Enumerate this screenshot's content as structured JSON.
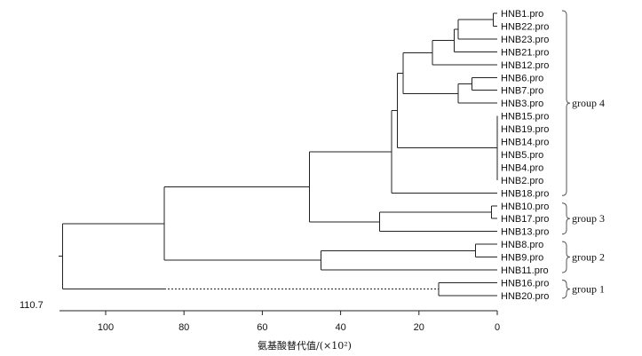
{
  "leaves": [
    "HNB1.pro",
    "HNB22.pro",
    "HNB23.pro",
    "HNB21.pro",
    "HNB12.pro",
    "HNB6.pro",
    "HNB7.pro",
    "HNB3.pro",
    "HNB15.pro",
    "HNB19.pro",
    "HNB14.pro",
    "HNB5.pro",
    "HNB4.pro",
    "HNB2.pro",
    "HNB18.pro",
    "HNB10.pro",
    "HNB17.pro",
    "HNB13.pro",
    "HNB8.pro",
    "HNB9.pro",
    "HNB11.pro",
    "HNB16.pro",
    "HNB20.pro"
  ],
  "groups": [
    {
      "label": "group 4",
      "first_leaf": 0,
      "last_leaf": 14
    },
    {
      "label": "group 3",
      "first_leaf": 15,
      "last_leaf": 17
    },
    {
      "label": "group 2",
      "first_leaf": 18,
      "last_leaf": 20
    },
    {
      "label": "group 1",
      "first_leaf": 21,
      "last_leaf": 22
    }
  ],
  "axis": {
    "ticks": [
      "100",
      "80",
      "60",
      "40",
      "20",
      "0"
    ],
    "root_value_label": "110.7",
    "title": "氨基酸替代值/(×10²)"
  },
  "tree": {
    "max": 110.7,
    "merges": [
      {
        "id": "a",
        "children": [
          "L0",
          "L1"
        ],
        "height": 1
      },
      {
        "id": "b",
        "children": [
          "a",
          "L2"
        ],
        "height": 10
      },
      {
        "id": "c",
        "children": [
          "b",
          "L3"
        ],
        "height": 11
      },
      {
        "id": "d",
        "children": [
          "c",
          "L4"
        ],
        "height": 16.5
      },
      {
        "id": "e",
        "children": [
          "L5",
          "L6"
        ],
        "height": 6.5
      },
      {
        "id": "f",
        "children": [
          "e",
          "L7"
        ],
        "height": 10
      },
      {
        "id": "g",
        "children": [
          "d",
          "f"
        ],
        "height": 24
      },
      {
        "id": "h",
        "children": [
          "L8",
          "L9",
          "L10",
          "L11",
          "L12",
          "L13"
        ],
        "height": 0
      },
      {
        "id": "i",
        "children": [
          "g",
          "h"
        ],
        "height": 25.5
      },
      {
        "id": "j",
        "children": [
          "i",
          "L14"
        ],
        "height": 27
      },
      {
        "id": "k",
        "children": [
          "L15",
          "L16"
        ],
        "height": 1.5
      },
      {
        "id": "l",
        "children": [
          "k",
          "L17"
        ],
        "height": 30
      },
      {
        "id": "m",
        "children": [
          "j",
          "l"
        ],
        "height": 48
      },
      {
        "id": "n",
        "children": [
          "L18",
          "L19"
        ],
        "height": 5.5
      },
      {
        "id": "o",
        "children": [
          "n",
          "L20"
        ],
        "height": 45
      },
      {
        "id": "p",
        "children": [
          "m",
          "o"
        ],
        "height": 85
      },
      {
        "id": "q",
        "children": [
          "L21",
          "L22"
        ],
        "height": 15
      },
      {
        "id": "r",
        "children": [
          "p",
          "q"
        ],
        "height": 111
      },
      {
        "id": "s",
        "children": [
          "r"
        ],
        "height": 112
      }
    ],
    "dashed_branch": {
      "child": "q",
      "from_height": 85
    }
  }
}
